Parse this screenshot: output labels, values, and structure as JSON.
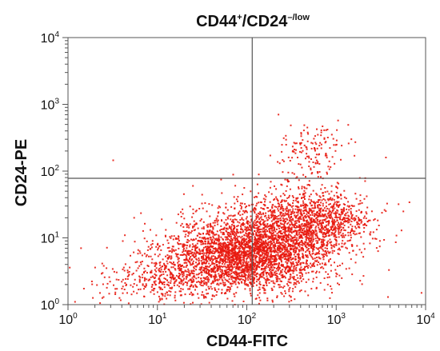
{
  "chart_data": {
    "type": "scatter",
    "title": {
      "base": "CD44",
      "sup1": "+",
      "mid": "/CD24",
      "sup2": "–/low"
    },
    "xlabel": "CD44-FITC",
    "ylabel": "CD24-PE",
    "xscale": "log",
    "yscale": "log",
    "xlim": [
      1,
      10000
    ],
    "ylim": [
      1,
      10000
    ],
    "x_ticks": [
      {
        "base": "10",
        "exp": "0",
        "value": 1
      },
      {
        "base": "10",
        "exp": "1",
        "value": 10
      },
      {
        "base": "10",
        "exp": "2",
        "value": 100
      },
      {
        "base": "10",
        "exp": "3",
        "value": 1000
      },
      {
        "base": "10",
        "exp": "4",
        "value": 10000
      }
    ],
    "y_ticks": [
      {
        "base": "10",
        "exp": "0",
        "value": 1
      },
      {
        "base": "10",
        "exp": "1",
        "value": 10
      },
      {
        "base": "10",
        "exp": "2",
        "value": 100
      },
      {
        "base": "10",
        "exp": "3",
        "value": 1000
      },
      {
        "base": "10",
        "exp": "4",
        "value": 10000
      }
    ],
    "quadrant_gates": {
      "x": 115,
      "y": 78
    },
    "grid": false,
    "point_color": "#e8190f",
    "clusters": [
      {
        "center": [
          90,
          5.5
        ],
        "spread": [
          0.42,
          0.28
        ],
        "count": 1700
      },
      {
        "center": [
          200,
          8
        ],
        "spread": [
          0.38,
          0.3
        ],
        "count": 1400
      },
      {
        "center": [
          30,
          3.5
        ],
        "spread": [
          0.4,
          0.26
        ],
        "count": 650
      },
      {
        "center": [
          700,
          16
        ],
        "spread": [
          0.3,
          0.2
        ],
        "count": 650
      },
      {
        "center": [
          480,
          30
        ],
        "spread": [
          0.3,
          0.22
        ],
        "count": 300
      },
      {
        "center": [
          550,
          200
        ],
        "spread": [
          0.17,
          0.2
        ],
        "count": 140
      },
      {
        "center": [
          8,
          2.3
        ],
        "spread": [
          0.3,
          0.15
        ],
        "count": 150
      }
    ],
    "outliers": [
      [
        3.2,
        145
      ],
      [
        4.5,
        2.0
      ],
      [
        5.5,
        20
      ],
      [
        1.4,
        7
      ],
      [
        2.5,
        1.3
      ],
      [
        1600,
        170
      ],
      [
        3600,
        160
      ],
      [
        3800,
        1.3
      ],
      [
        9000,
        1.5
      ],
      [
        25,
        60
      ],
      [
        260,
        140
      ],
      [
        800,
        420
      ],
      [
        1400,
        3.5
      ],
      [
        1.2,
        1.1
      ]
    ]
  }
}
